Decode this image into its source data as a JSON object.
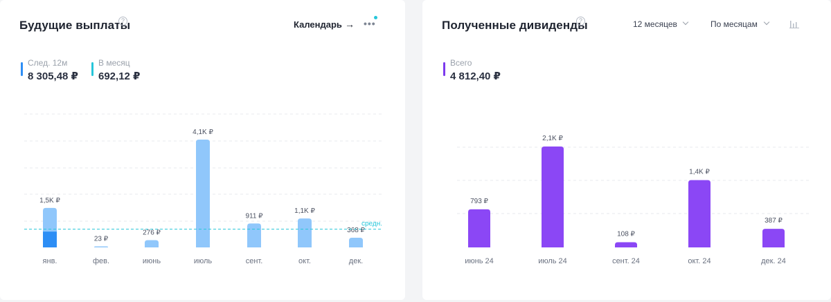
{
  "left": {
    "title": "Будущие выплаты",
    "calendar_label": "Календарь",
    "arrow": "→",
    "more": "•••",
    "stats": [
      {
        "label": "След. 12м",
        "value": "8 305,48 ₽",
        "color": "#2d8ef5"
      },
      {
        "label": "В месяц",
        "value": "692,12 ₽",
        "color": "#26c6da"
      }
    ],
    "avg_label": "средн.",
    "chart_data": {
      "type": "bar",
      "categories": [
        "янв.",
        "фев.",
        "июнь",
        "июль",
        "сент.",
        "окт.",
        "дек."
      ],
      "values": [
        1500,
        23,
        276,
        4100,
        911,
        1100,
        368
      ],
      "received_part": [
        600,
        0,
        0,
        0,
        0,
        0,
        0
      ],
      "data_labels": [
        "1,5K ₽",
        "23 ₽",
        "276 ₽",
        "4,1K ₽",
        "911 ₽",
        "1,1K ₽",
        "368 ₽"
      ],
      "average": 692.12,
      "ylim": [
        0,
        5000
      ],
      "grid": true,
      "colors": {
        "bar": "#90c7fb",
        "received": "#2d8ef5",
        "avg": "#26c6da"
      }
    }
  },
  "right": {
    "title": "Полученные дивиденды",
    "period_label": "12 месяцев",
    "group_label": "По месяцам",
    "stats": [
      {
        "label": "Всего",
        "value": "4 812,40 ₽",
        "color": "#7c3aed"
      }
    ],
    "chart_data": {
      "type": "bar",
      "categories": [
        "июнь 24",
        "июль 24",
        "сент. 24",
        "окт. 24",
        "дек. 24"
      ],
      "values": [
        793,
        2100,
        108,
        1400,
        387
      ],
      "data_labels": [
        "793 ₽",
        "2,1K ₽",
        "108 ₽",
        "1,4K ₽",
        "387 ₽"
      ],
      "ylim": [
        0,
        2500
      ],
      "grid": true,
      "colors": {
        "bar": "#8b47f5"
      }
    }
  }
}
